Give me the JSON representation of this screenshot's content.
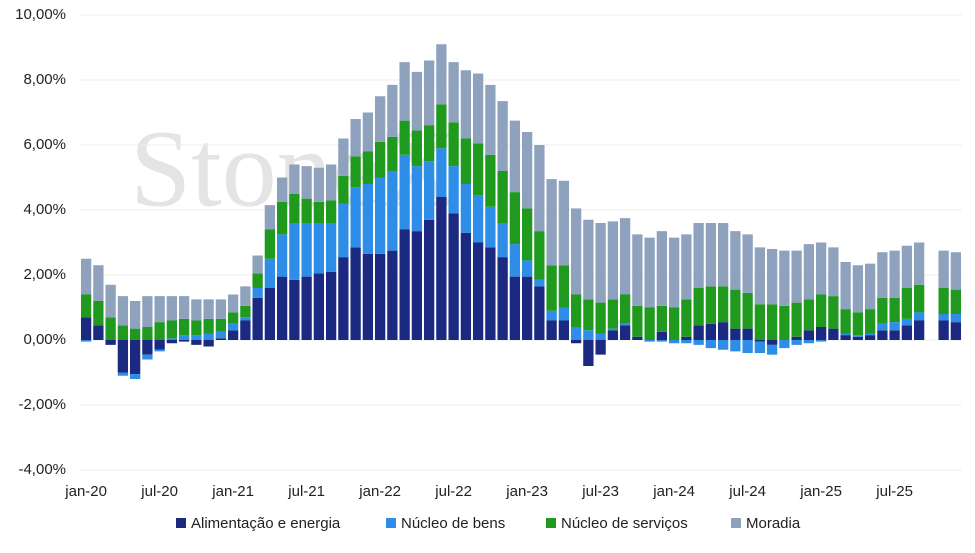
{
  "chart_data": {
    "type": "stacked-bar",
    "watermark": "StoneX",
    "categories": [
      "jan-20",
      null,
      null,
      null,
      null,
      null,
      "jul-20",
      null,
      null,
      null,
      null,
      null,
      "jan-21",
      null,
      null,
      null,
      null,
      null,
      "jul-21",
      null,
      null,
      null,
      null,
      null,
      "jan-22",
      null,
      null,
      null,
      null,
      null,
      "jul-22",
      null,
      null,
      null,
      null,
      null,
      "jan-23",
      null,
      null,
      null,
      null,
      null,
      "jul-23",
      null,
      null,
      null,
      null,
      null,
      "jan-24",
      null,
      null,
      null,
      null,
      null,
      "jul-24",
      null,
      null,
      null,
      null,
      null,
      "jan-25",
      null,
      null,
      null,
      null,
      null,
      "jul-25",
      null,
      null,
      null,
      null,
      null
    ],
    "series": [
      {
        "name": "Alimentação e energia",
        "color": "#1b2a80",
        "values": [
          0.7,
          0.45,
          -0.15,
          -1.0,
          -1.05,
          -0.45,
          -0.3,
          -0.1,
          -0.05,
          -0.15,
          -0.2,
          0.05,
          0.3,
          0.6,
          1.3,
          1.6,
          1.95,
          1.85,
          1.95,
          2.05,
          2.1,
          2.55,
          2.85,
          2.65,
          2.65,
          2.75,
          3.4,
          3.35,
          3.7,
          4.4,
          3.9,
          3.3,
          3.0,
          2.85,
          2.55,
          1.95,
          1.95,
          1.65,
          0.6,
          0.6,
          -0.1,
          -0.8,
          -0.45,
          0.3,
          0.45,
          0.1,
          0,
          0.25,
          0,
          0.1,
          0.45,
          0.5,
          0.55,
          0.35,
          0.35,
          -0.05,
          -0.15,
          0,
          0.1,
          0.3,
          0.4,
          0.35,
          0.15,
          0.1,
          0.15,
          0.3,
          0.3,
          0.45,
          0.6,
          null,
          0.6,
          0.55
        ]
      },
      {
        "name": "Núcleo de bens",
        "color": "#2e8de6",
        "values": [
          -0.05,
          0,
          0,
          -0.1,
          -0.15,
          -0.15,
          -0.05,
          0.05,
          0.15,
          0.15,
          0.2,
          0.2,
          0.2,
          0.1,
          0.3,
          0.9,
          1.3,
          1.75,
          1.65,
          1.55,
          1.5,
          1.65,
          1.85,
          2.15,
          2.35,
          2.45,
          2.3,
          2.0,
          1.8,
          1.5,
          1.45,
          1.5,
          1.45,
          1.25,
          1.05,
          1.0,
          0.5,
          0.2,
          0.3,
          0.4,
          0.4,
          0.3,
          0.2,
          0.05,
          0.05,
          0,
          -0.05,
          -0.05,
          -0.1,
          -0.1,
          -0.15,
          -0.25,
          -0.3,
          -0.35,
          -0.4,
          -0.35,
          -0.3,
          -0.25,
          -0.15,
          -0.1,
          -0.05,
          0,
          0.05,
          0.05,
          0.05,
          0.2,
          0.25,
          0.2,
          0.25,
          null,
          0.2,
          0.25
        ]
      },
      {
        "name": "Núcleo de serviços",
        "color": "#1f9a1f",
        "values": [
          0.7,
          0.75,
          0.7,
          0.45,
          0.35,
          0.4,
          0.55,
          0.55,
          0.5,
          0.45,
          0.45,
          0.4,
          0.35,
          0.35,
          0.45,
          0.9,
          1.0,
          0.9,
          0.75,
          0.65,
          0.7,
          0.85,
          0.95,
          1.0,
          1.1,
          1.05,
          1.05,
          1.1,
          1.1,
          1.35,
          1.35,
          1.4,
          1.6,
          1.6,
          1.6,
          1.6,
          1.6,
          1.5,
          1.4,
          1.3,
          1.0,
          0.95,
          0.95,
          0.9,
          0.9,
          0.95,
          1.0,
          0.8,
          1.0,
          1.15,
          1.15,
          1.15,
          1.1,
          1.2,
          1.1,
          1.1,
          1.1,
          1.05,
          1.05,
          0.95,
          1.0,
          1.0,
          0.75,
          0.7,
          0.75,
          0.8,
          0.75,
          0.95,
          0.85,
          null,
          0.8,
          0.75
        ]
      },
      {
        "name": "Moradia",
        "color": "#8fa2bd",
        "values": [
          1.1,
          1.1,
          1.0,
          0.9,
          0.85,
          0.95,
          0.8,
          0.75,
          0.7,
          0.65,
          0.6,
          0.6,
          0.55,
          0.6,
          0.55,
          0.75,
          0.75,
          0.9,
          1.0,
          1.05,
          1.1,
          1.15,
          1.15,
          1.2,
          1.4,
          1.6,
          1.8,
          1.8,
          2.0,
          1.85,
          1.85,
          2.1,
          2.15,
          2.15,
          2.15,
          2.2,
          2.35,
          2.65,
          2.65,
          2.6,
          2.65,
          2.45,
          2.45,
          2.4,
          2.35,
          2.2,
          2.15,
          2.3,
          2.15,
          2.0,
          2.0,
          1.95,
          1.95,
          1.8,
          1.8,
          1.75,
          1.7,
          1.7,
          1.6,
          1.7,
          1.6,
          1.5,
          1.45,
          1.45,
          1.4,
          1.4,
          1.45,
          1.3,
          1.3,
          null,
          1.15,
          1.15
        ]
      }
    ],
    "ylim": [
      -4,
      10
    ],
    "yticks": [
      {
        "value": -4,
        "label": "-4,00%"
      },
      {
        "value": -2,
        "label": "-2,00%"
      },
      {
        "value": 0,
        "label": "0,00%"
      },
      {
        "value": 2,
        "label": "2,00%"
      },
      {
        "value": 4,
        "label": "4,00%"
      },
      {
        "value": 6,
        "label": "6,00%"
      },
      {
        "value": 8,
        "label": "8,00%"
      },
      {
        "value": 10,
        "label": "10,00%"
      }
    ],
    "grid": true
  }
}
